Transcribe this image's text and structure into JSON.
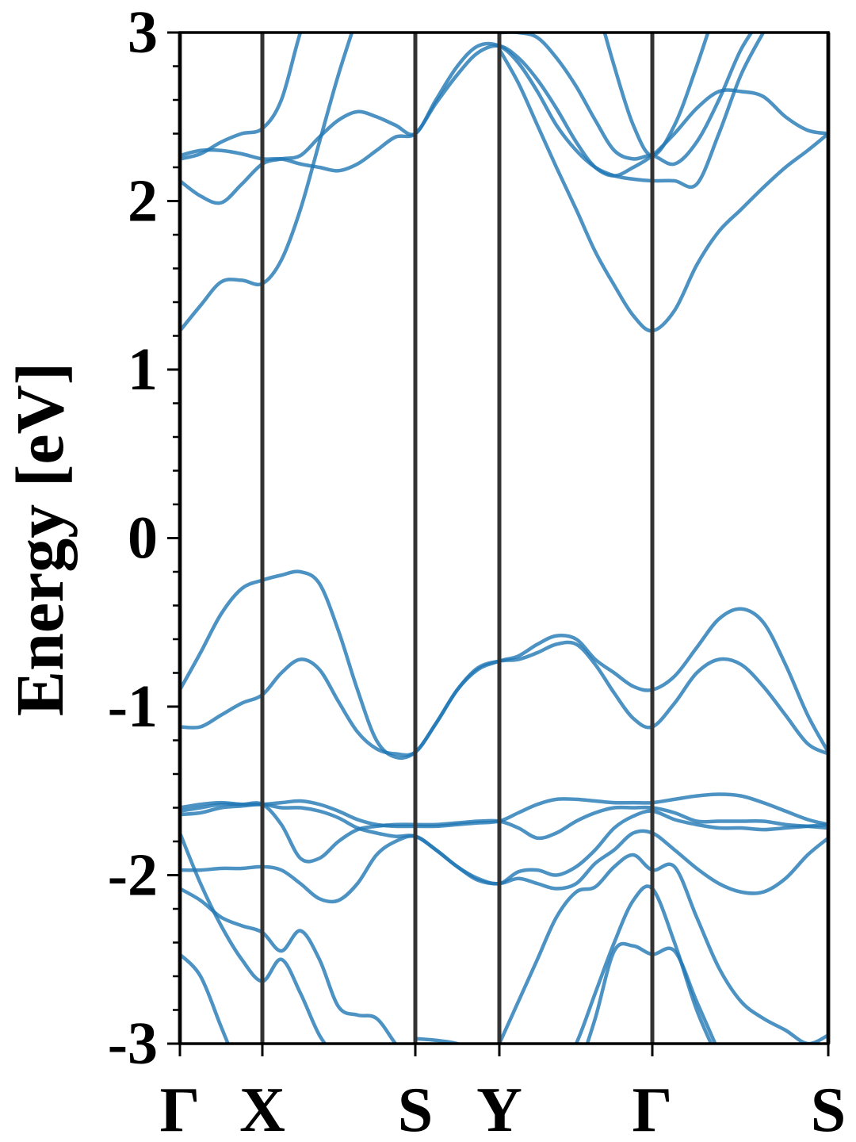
{
  "chart_data": {
    "type": "line",
    "ylabel": "Energy [eV]",
    "color": "#1f77b4",
    "xlim": [
      0,
      8.18
    ],
    "xticks": [
      {
        "value": 0,
        "label": "Γ"
      },
      {
        "value": 1.04,
        "label": "X"
      },
      {
        "value": 2.97,
        "label": "S"
      },
      {
        "value": 4.03,
        "label": "Y"
      },
      {
        "value": 5.96,
        "label": "Γ"
      },
      {
        "value": 8.18,
        "label": "S"
      }
    ],
    "ylim": [
      -3,
      3
    ],
    "yticks": [
      -3,
      -2,
      -1,
      0,
      1,
      2,
      3
    ],
    "yminorticks": [
      -2.8,
      -2.6,
      -2.4,
      -2.2,
      -1.8,
      -1.6,
      -1.4,
      -1.2,
      -0.8,
      -0.6,
      -0.4,
      -0.2,
      0.2,
      0.4,
      0.6,
      0.8,
      1.2,
      1.4,
      1.6,
      1.8,
      2.2,
      2.4,
      2.6,
      2.8
    ],
    "x": [
      0,
      0.26,
      0.52,
      0.78,
      1.04,
      1.28,
      1.52,
      1.76,
      2.0,
      2.24,
      2.48,
      2.72,
      2.97,
      3.23,
      3.5,
      3.76,
      4.03,
      4.27,
      4.51,
      4.75,
      5.0,
      5.24,
      5.48,
      5.72,
      5.96,
      6.24,
      6.52,
      6.8,
      7.08,
      7.36,
      7.64,
      7.92,
      8.18
    ],
    "series": [
      {
        "values": [
          -0.9,
          -0.68,
          -0.45,
          -0.3,
          -0.25,
          -0.22,
          -0.2,
          -0.27,
          -0.55,
          -0.9,
          -1.2,
          -1.3,
          -1.27,
          -1.1,
          -0.9,
          -0.78,
          -0.73,
          -0.7,
          -0.63,
          -0.58,
          -0.6,
          -0.72,
          -0.8,
          -0.88,
          -0.9,
          -0.82,
          -0.65,
          -0.48,
          -0.42,
          -0.5,
          -0.75,
          -1.05,
          -1.27
        ]
      },
      {
        "values": [
          -1.12,
          -1.12,
          -1.05,
          -0.98,
          -0.93,
          -0.8,
          -0.72,
          -0.78,
          -0.97,
          -1.15,
          -1.25,
          -1.28,
          -1.27,
          -1.1,
          -0.9,
          -0.77,
          -0.73,
          -0.72,
          -0.68,
          -0.63,
          -0.63,
          -0.75,
          -0.92,
          -1.07,
          -1.12,
          -0.98,
          -0.8,
          -0.72,
          -0.75,
          -0.88,
          -1.05,
          -1.22,
          -1.28
        ]
      },
      {
        "values": [
          -1.62,
          -1.6,
          -1.58,
          -1.58,
          -1.58,
          -1.57,
          -1.56,
          -1.58,
          -1.62,
          -1.67,
          -1.7,
          -1.71,
          -1.71,
          -1.71,
          -1.7,
          -1.69,
          -1.68,
          -1.63,
          -1.58,
          -1.55,
          -1.55,
          -1.56,
          -1.57,
          -1.57,
          -1.57,
          -1.55,
          -1.53,
          -1.52,
          -1.53,
          -1.57,
          -1.62,
          -1.67,
          -1.7
        ]
      },
      {
        "values": [
          -1.6,
          -1.58,
          -1.57,
          -1.58,
          -1.58,
          -1.7,
          -1.9,
          -1.9,
          -1.8,
          -1.73,
          -1.71,
          -1.7,
          -1.7,
          -1.7,
          -1.69,
          -1.68,
          -1.68,
          -1.72,
          -1.78,
          -1.75,
          -1.68,
          -1.63,
          -1.6,
          -1.6,
          -1.6,
          -1.63,
          -1.68,
          -1.68,
          -1.68,
          -1.68,
          -1.7,
          -1.71,
          -1.72
        ]
      },
      {
        "values": [
          -1.64,
          -1.63,
          -1.6,
          -1.59,
          -1.58,
          -1.6,
          -1.6,
          -1.62,
          -1.66,
          -1.72,
          -1.75,
          -1.77,
          -1.77,
          -1.85,
          -1.95,
          -2.03,
          -2.05,
          -2.02,
          -2.05,
          -2.08,
          -2.05,
          -1.93,
          -1.85,
          -1.75,
          -1.75,
          -1.85,
          -1.96,
          -2.05,
          -2.1,
          -2.1,
          -2.02,
          -1.88,
          -1.78
        ]
      },
      {
        "values": [
          -1.97,
          -1.97,
          -1.96,
          -1.96,
          -1.95,
          -1.97,
          -2.05,
          -2.14,
          -2.15,
          -2.05,
          -1.88,
          -1.8,
          -1.77,
          -1.85,
          -1.95,
          -2.02,
          -2.05,
          -1.98,
          -1.97,
          -2.0,
          -1.95,
          -1.85,
          -1.72,
          -1.65,
          -1.62,
          -1.67,
          -1.7,
          -1.72,
          -1.72,
          -1.73,
          -1.72,
          -1.71,
          -1.7
        ]
      },
      {
        "values": [
          -1.75,
          -2.05,
          -2.3,
          -2.5,
          -2.63,
          -2.5,
          -2.7,
          -2.95,
          -3.1,
          null,
          null,
          null,
          null,
          null,
          null,
          null,
          null,
          null,
          null,
          null,
          null,
          null,
          null,
          null,
          null,
          null,
          null,
          null,
          null,
          null,
          null,
          null,
          null
        ]
      },
      {
        "values": [
          -2.08,
          -2.15,
          -2.25,
          -2.3,
          -2.34,
          -2.45,
          -2.33,
          -2.5,
          -2.78,
          -2.83,
          -2.85,
          -3.0,
          -3.15,
          null,
          null,
          null,
          null,
          null,
          null,
          null,
          null,
          null,
          null,
          null,
          null,
          null,
          null,
          null,
          null,
          null,
          null,
          null,
          null
        ]
      },
      {
        "values": [
          null,
          null,
          null,
          null,
          null,
          null,
          null,
          null,
          null,
          null,
          null,
          null,
          -2.97,
          -2.98,
          -3.0,
          -3.05,
          -3.1,
          null,
          null,
          null,
          null,
          null,
          null,
          null,
          null,
          null,
          null,
          null,
          null,
          null,
          null,
          null,
          null
        ]
      },
      {
        "values": [
          -2.47,
          -2.6,
          -2.9,
          -3.2,
          null,
          null,
          null,
          null,
          null,
          null,
          null,
          null,
          null,
          null,
          null,
          null,
          null,
          null,
          null,
          null,
          null,
          null,
          null,
          null,
          null,
          null,
          null,
          null,
          null,
          null,
          null,
          null,
          null
        ]
      },
      {
        "values": [
          null,
          null,
          null,
          null,
          null,
          null,
          null,
          null,
          null,
          null,
          null,
          null,
          null,
          null,
          null,
          null,
          -3.0,
          -2.75,
          -2.5,
          -2.25,
          -2.1,
          -2.07,
          -1.95,
          -1.88,
          -1.97,
          -1.95,
          -2.25,
          -2.55,
          -2.75,
          -2.85,
          -2.92,
          -3.0,
          -2.95
        ]
      },
      {
        "values": [
          null,
          null,
          null,
          null,
          null,
          null,
          null,
          null,
          null,
          null,
          null,
          null,
          null,
          null,
          null,
          null,
          null,
          null,
          null,
          -3.2,
          -3.0,
          -2.7,
          -2.4,
          -2.15,
          -2.08,
          -2.4,
          -2.8,
          -3.1,
          null,
          null,
          null,
          null,
          null
        ]
      },
      {
        "values": [
          null,
          null,
          null,
          null,
          null,
          null,
          null,
          null,
          null,
          null,
          null,
          null,
          null,
          null,
          null,
          null,
          null,
          null,
          null,
          null,
          -3.2,
          -2.85,
          -2.45,
          -2.42,
          -2.47,
          -2.45,
          -2.75,
          -3.05,
          null,
          null,
          null,
          null,
          null
        ]
      },
      {
        "values": [
          1.23,
          1.38,
          1.52,
          1.53,
          1.51,
          1.65,
          1.95,
          2.35,
          2.75,
          3.1,
          null,
          null,
          null,
          null,
          null,
          null,
          2.9,
          2.7,
          2.45,
          2.2,
          1.95,
          1.7,
          1.5,
          1.32,
          1.23,
          1.35,
          1.62,
          1.82,
          1.95,
          2.08,
          2.2,
          2.3,
          2.4
        ]
      },
      {
        "values": [
          2.27,
          2.3,
          2.3,
          2.28,
          2.25,
          2.25,
          2.22,
          2.2,
          2.18,
          2.22,
          2.3,
          2.38,
          2.4,
          2.58,
          2.75,
          2.88,
          2.92,
          2.85,
          2.72,
          2.55,
          2.35,
          2.2,
          2.15,
          2.2,
          2.27,
          2.4,
          2.55,
          2.65,
          2.65,
          2.62,
          2.5,
          2.42,
          2.4
        ]
      },
      {
        "values": [
          2.25,
          2.28,
          2.35,
          2.4,
          2.43,
          2.6,
          3.0,
          3.3,
          null,
          null,
          null,
          null,
          null,
          null,
          null,
          null,
          null,
          null,
          null,
          null,
          null,
          null,
          null,
          null,
          null,
          null,
          null,
          null,
          null,
          null,
          null,
          null,
          null
        ]
      },
      {
        "values": [
          2.12,
          2.03,
          1.99,
          2.1,
          2.22,
          2.25,
          2.27,
          2.38,
          2.48,
          2.53,
          2.5,
          2.45,
          2.4,
          2.6,
          2.8,
          2.92,
          2.92,
          2.82,
          2.65,
          2.45,
          2.3,
          2.2,
          2.15,
          2.13,
          2.12,
          2.12,
          2.1,
          2.4,
          2.75,
          3.0,
          null,
          null,
          null
        ]
      },
      {
        "values": [
          null,
          null,
          null,
          null,
          null,
          null,
          null,
          null,
          null,
          null,
          null,
          null,
          null,
          null,
          null,
          null,
          3.0,
          3.0,
          2.97,
          2.85,
          2.68,
          2.48,
          2.3,
          2.25,
          2.27,
          2.22,
          2.35,
          2.6,
          2.9,
          3.1,
          null,
          null,
          null
        ]
      },
      {
        "values": [
          null,
          null,
          null,
          null,
          null,
          null,
          null,
          null,
          null,
          null,
          null,
          null,
          null,
          null,
          null,
          null,
          null,
          null,
          null,
          null,
          null,
          3.2,
          2.8,
          2.45,
          2.27,
          2.45,
          2.8,
          3.2,
          null,
          null,
          null,
          null,
          null
        ]
      }
    ]
  }
}
